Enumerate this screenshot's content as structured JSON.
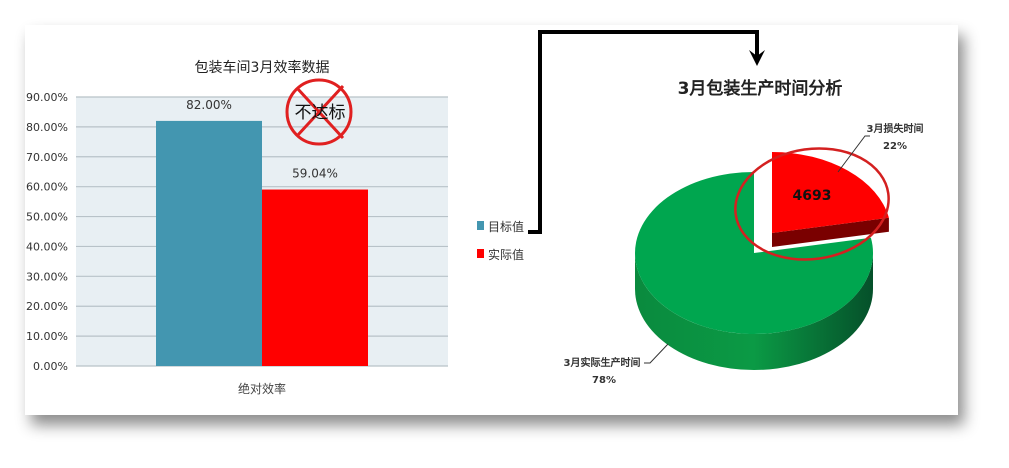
{
  "chart_data": [
    {
      "type": "bar",
      "title": "包装车间3月效率数据",
      "categories": [
        "绝对效率"
      ],
      "series": [
        {
          "name": "目标值",
          "values": [
            82.0
          ],
          "color": "#4396B0"
        },
        {
          "name": "实际值",
          "values": [
            59.04
          ],
          "color": "#FF0000"
        }
      ],
      "data_labels": [
        "82.00%",
        "59.04%"
      ],
      "ylim": [
        0,
        90
      ],
      "yticks": [
        "0.00%",
        "10.00%",
        "20.00%",
        "30.00%",
        "40.00%",
        "50.00%",
        "60.00%",
        "70.00%",
        "80.00%",
        "90.00%"
      ],
      "grid": true,
      "legend": "right",
      "annotation": "不达标"
    },
    {
      "type": "pie",
      "title": "3月包装生产时间分析",
      "slices": [
        {
          "label": "3月损失时间",
          "percent": "22%",
          "value": 22,
          "color": "#FF0000",
          "callout": "4693"
        },
        {
          "label": "3月实际生产时间",
          "percent": "78%",
          "value": 78,
          "color": "#00A64F"
        }
      ],
      "style": "3d-exploded"
    }
  ]
}
